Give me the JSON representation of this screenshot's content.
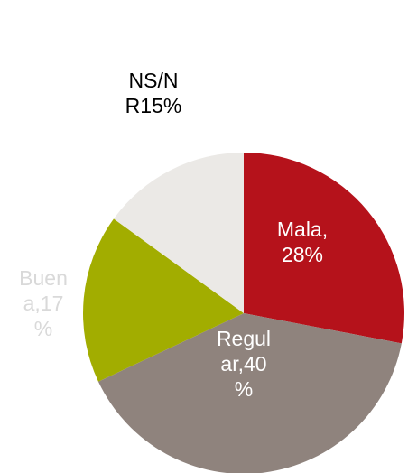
{
  "chart_data": {
    "type": "pie",
    "values": [
      28,
      40,
      17,
      15
    ],
    "value_labels": [
      [
        "Mala,",
        "28%"
      ],
      [
        "Regul",
        "ar,40",
        "%"
      ],
      [
        "Buen",
        "a,17",
        "%"
      ],
      [
        "NS/N",
        "R15%"
      ]
    ],
    "colors": [
      "#b5121b",
      "#8f837d",
      "#a2ad00",
      "#ebe9e6"
    ],
    "label_colors": [
      "#ffffff",
      "#ffffff",
      "#d9d9d9",
      "#000000"
    ]
  }
}
